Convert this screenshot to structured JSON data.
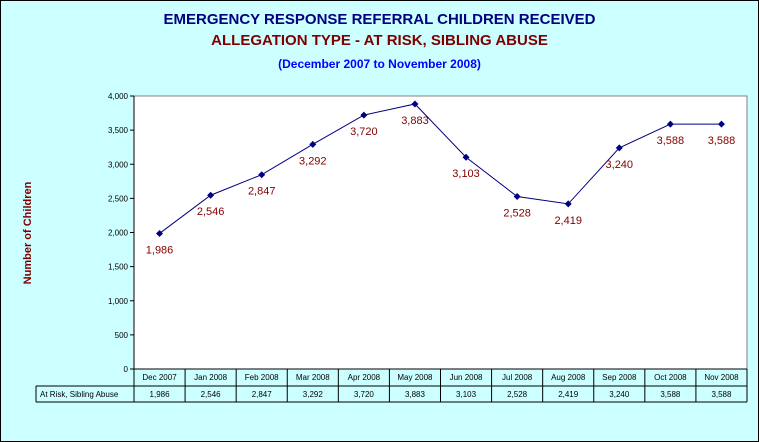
{
  "chart_data": {
    "type": "line",
    "title": "EMERGENCY RESPONSE REFERRAL CHILDREN RECEIVED",
    "subtitle": "ALLEGATION TYPE - AT RISK, SIBLING ABUSE",
    "date_range": "(December 2007 to November 2008)",
    "ylabel": "Number of Children",
    "ylim": [
      0,
      4000
    ],
    "yticks": [
      0,
      500,
      1000,
      1500,
      2000,
      2500,
      3000,
      3500,
      4000
    ],
    "ytick_labels": [
      "0",
      "500",
      "1,000",
      "1,500",
      "2,000",
      "2,500",
      "3,000",
      "3,500",
      "4,000"
    ],
    "categories": [
      "Dec 2007",
      "Jan 2008",
      "Feb 2008",
      "Mar 2008",
      "Apr 2008",
      "May 2008",
      "Jun 2008",
      "Jul 2008",
      "Aug 2008",
      "Sep 2008",
      "Oct 2008",
      "Nov 2008"
    ],
    "series": [
      {
        "name": "At Risk, Sibling Abuse",
        "values": [
          1986,
          2546,
          2847,
          3292,
          3720,
          3883,
          3103,
          2528,
          2419,
          3240,
          3588,
          3588
        ],
        "labels": [
          "1,986",
          "2,546",
          "2,847",
          "3,292",
          "3,720",
          "3,883",
          "3,103",
          "2,528",
          "2,419",
          "3,240",
          "3,588",
          "3,588"
        ]
      }
    ],
    "line_color": "#000080",
    "label_color": "#800000",
    "plot_background": "#FFFFFF",
    "chart_background": "#CCFFFF",
    "grid": false,
    "data_table": true
  }
}
